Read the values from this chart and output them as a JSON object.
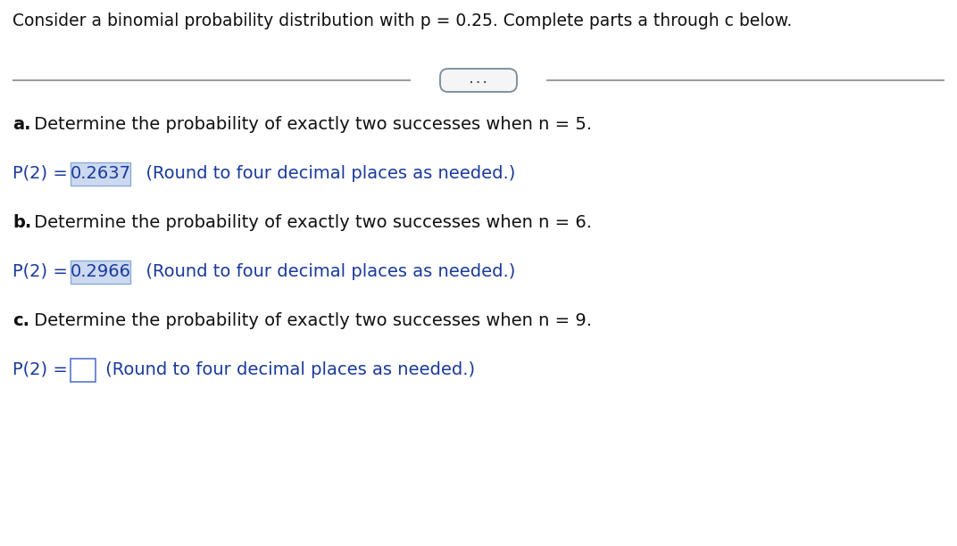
{
  "title": "Consider a binomial probability distribution with p = 0.25. Complete parts a through c below.",
  "title_fontsize": 13.5,
  "background_color": "#ffffff",
  "text_color_black": "#111111",
  "text_color_blue": "#1a3a9c",
  "highlight_color": "#ccd9f0",
  "highlight_border": "#8aaad4",
  "dots_text": ". . .",
  "part_a_label": "a.",
  "part_a_question": " Determine the probability of exactly two successes when n = 5.",
  "part_a_answer_prefix": "P(2) = ",
  "part_a_answer_value": "0.2637",
  "part_a_answer_suffix": "  (Round to four decimal places as needed.)",
  "part_b_label": "b.",
  "part_b_question": " Determine the probability of exactly two successes when n = 6.",
  "part_b_answer_prefix": "P(2) = ",
  "part_b_answer_value": "0.2966",
  "part_b_answer_suffix": "  (Round to four decimal places as needed.)",
  "part_c_label": "c.",
  "part_c_question": " Determine the probability of exactly two successes when n = 9.",
  "part_c_answer_prefix": "P(2) = ",
  "part_c_answer_suffix": " (Round to four decimal places as needed.)",
  "font_family": "DejaVu Sans",
  "question_fontsize": 14,
  "answer_fontsize": 14
}
